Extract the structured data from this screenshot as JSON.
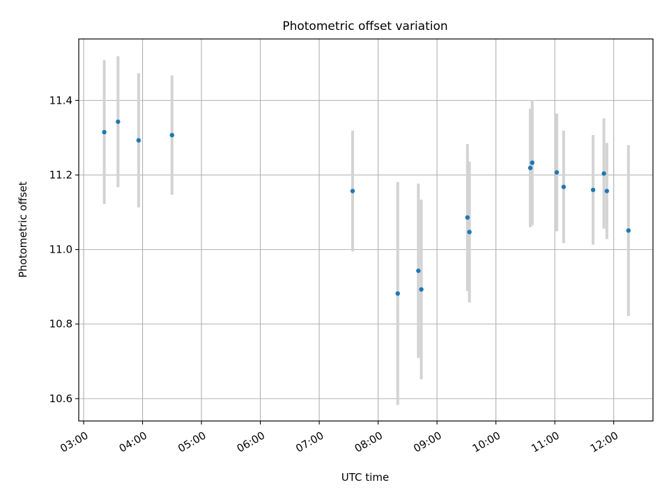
{
  "chart_data": {
    "type": "scatter",
    "title": "Photometric offset variation",
    "xlabel": "UTC time",
    "ylabel": "Photometric offset",
    "x_ticks": [
      "03:00",
      "04:00",
      "05:00",
      "06:00",
      "07:00",
      "08:00",
      "09:00",
      "10:00",
      "11:00",
      "12:00"
    ],
    "y_ticks": [
      "10.6",
      "10.8",
      "11.0",
      "11.2",
      "11.4"
    ],
    "xlim": [
      "02:55",
      "12:40"
    ],
    "ylim": [
      10.54,
      11.565
    ],
    "grid": true,
    "colors": {
      "point": "#1f77b4",
      "errorbar": "#d3d3d3",
      "grid": "#b0b0b0"
    },
    "points": [
      {
        "time": "03:21",
        "y": 11.315,
        "yerr": 0.193
      },
      {
        "time": "03:35",
        "y": 11.343,
        "yerr": 0.176
      },
      {
        "time": "03:56",
        "y": 11.293,
        "yerr": 0.18
      },
      {
        "time": "04:30",
        "y": 11.307,
        "yerr": 0.16
      },
      {
        "time": "07:34",
        "y": 11.157,
        "yerr": 0.162
      },
      {
        "time": "08:20",
        "y": 10.882,
        "yerr": 0.299
      },
      {
        "time": "08:41",
        "y": 10.943,
        "yerr": 0.234
      },
      {
        "time": "08:44",
        "y": 10.893,
        "yerr": 0.241
      },
      {
        "time": "09:31",
        "y": 11.086,
        "yerr": 0.197
      },
      {
        "time": "09:33",
        "y": 11.047,
        "yerr": 0.189
      },
      {
        "time": "10:35",
        "y": 11.219,
        "yerr": 0.159
      },
      {
        "time": "10:37",
        "y": 11.233,
        "yerr": 0.168
      },
      {
        "time": "11:02",
        "y": 11.207,
        "yerr": 0.158
      },
      {
        "time": "11:09",
        "y": 11.168,
        "yerr": 0.151
      },
      {
        "time": "11:39",
        "y": 11.16,
        "yerr": 0.147
      },
      {
        "time": "11:50",
        "y": 11.204,
        "yerr": 0.148
      },
      {
        "time": "11:53",
        "y": 11.157,
        "yerr": 0.129
      },
      {
        "time": "12:15",
        "y": 11.051,
        "yerr": 0.229
      }
    ]
  }
}
